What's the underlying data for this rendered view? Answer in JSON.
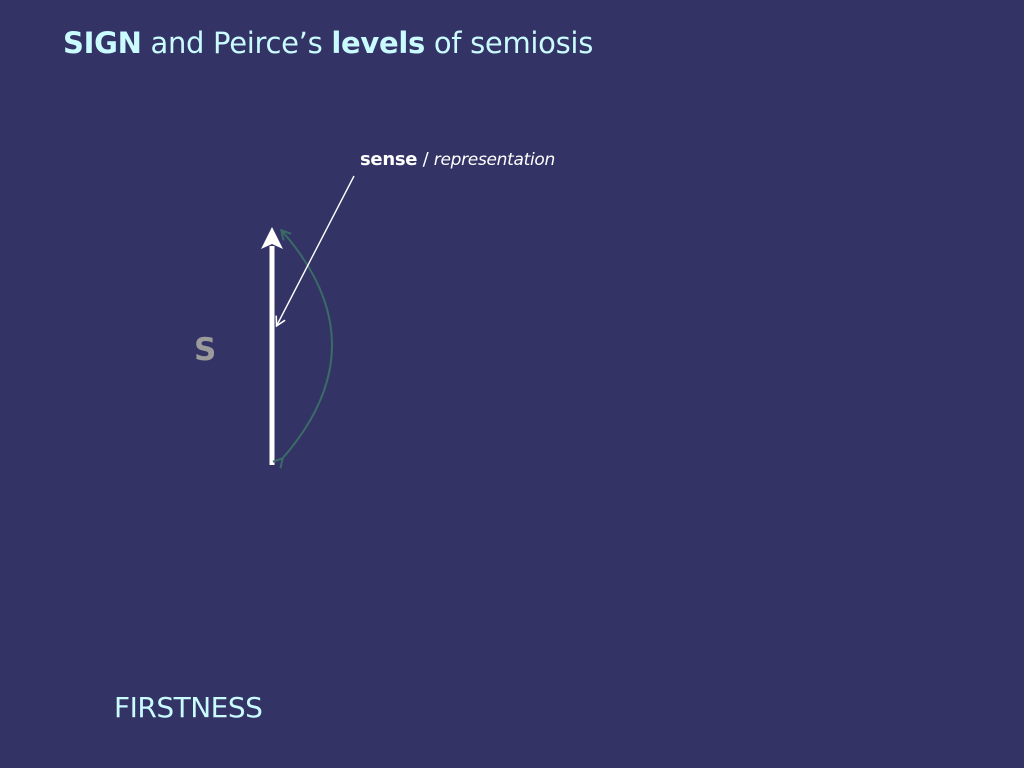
{
  "title": {
    "part1": "SIGN",
    "part2": " and Peirce’s ",
    "part3": "levels",
    "part4": " of semiosis"
  },
  "diagram": {
    "sense_bold": "sense",
    "sense_sep": " / ",
    "sense_italic": "representation",
    "sign_letter": "S",
    "colors": {
      "main_arrow": "#ffffff",
      "curved_arrow": "#3a6b67",
      "pointer_line": "#ffffff"
    }
  },
  "footer": {
    "level": "FIRSTNESS"
  },
  "colors": {
    "background": "#343366",
    "title_text": "#c9fbff",
    "sign_letter": "#9b9b9b"
  }
}
